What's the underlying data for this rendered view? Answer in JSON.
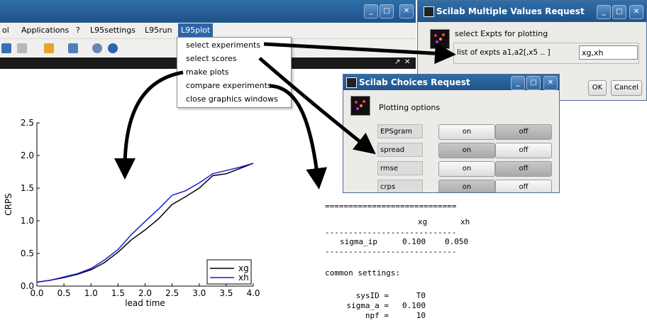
{
  "main_window": {
    "menu": [
      "ol",
      "Applications",
      "?",
      "L95settings",
      "L95run",
      "L95plot"
    ],
    "active_menu": "L95plot",
    "dropdown_items": [
      "select experiments",
      "select scores",
      "make plots",
      "compare experiments",
      "close graphics windows"
    ]
  },
  "multi_dialog": {
    "title": "Scilab Multiple Values Request",
    "prompt": "select Expts for plotting",
    "field_label": "list of expts a1,a2[,x5 .. ]",
    "field_value": "xg,xh",
    "ok": "OK",
    "cancel": "Cancel"
  },
  "choices_dialog": {
    "title": "Scilab Choices Request",
    "subtitle": "Plotting options",
    "rows": [
      {
        "label": "EPSgram",
        "on": "on",
        "off": "off",
        "selected": "off"
      },
      {
        "label": "spread",
        "on": "on",
        "off": "off",
        "selected": "on"
      },
      {
        "label": "rmse",
        "on": "on",
        "off": "off",
        "selected": "off"
      },
      {
        "label": "crps",
        "on": "on",
        "off": "off",
        "selected": "on"
      }
    ]
  },
  "colors": {
    "title_bar": "#2f6ea8",
    "series_xg": "#000000",
    "series_xh": "#1a1adc",
    "arrow": "#000000"
  },
  "chart_data": {
    "type": "line",
    "xlabel": "lead time",
    "ylabel": "CRPS",
    "xlim": [
      0,
      4
    ],
    "ylim": [
      0,
      2.5
    ],
    "xticks": [
      "0.0",
      "0.5",
      "1.0",
      "1.5",
      "2.0",
      "2.5",
      "3.0",
      "3.5",
      "4.0"
    ],
    "yticks": [
      "0.0",
      "0.5",
      "1.0",
      "1.5",
      "2.0",
      "2.5"
    ],
    "legend_position": "bottom-right",
    "series": [
      {
        "name": "xg",
        "x": [
          0,
          0.25,
          0.5,
          0.75,
          1.0,
          1.25,
          1.5,
          1.75,
          2.0,
          2.25,
          2.5,
          2.75,
          3.0,
          3.25,
          3.5,
          3.75,
          4.0
        ],
        "y": [
          0.06,
          0.09,
          0.13,
          0.18,
          0.25,
          0.36,
          0.52,
          0.71,
          0.86,
          1.03,
          1.25,
          1.37,
          1.5,
          1.69,
          1.72,
          1.8,
          1.88
        ]
      },
      {
        "name": "xh",
        "x": [
          0,
          0.25,
          0.5,
          0.75,
          1.0,
          1.25,
          1.5,
          1.75,
          2.0,
          2.25,
          2.5,
          2.75,
          3.0,
          3.25,
          3.5,
          3.75,
          4.0
        ],
        "y": [
          0.06,
          0.09,
          0.14,
          0.19,
          0.27,
          0.4,
          0.56,
          0.79,
          0.99,
          1.18,
          1.39,
          1.46,
          1.58,
          1.72,
          1.77,
          1.82,
          1.88
        ]
      }
    ]
  },
  "output_text": {
    "rule_double": "============================",
    "header": [
      "xg",
      "xh"
    ],
    "rule_single": "----------------------------",
    "row": {
      "name": "sigma_ip",
      "xg": "0.100",
      "xh": "0.050"
    },
    "common_label": "common settings:",
    "settings": [
      {
        "key": "sysID =",
        "value": "T0"
      },
      {
        "key": "sigma_a =",
        "value": "0.100"
      },
      {
        "key": "npf =",
        "value": "10"
      }
    ]
  }
}
